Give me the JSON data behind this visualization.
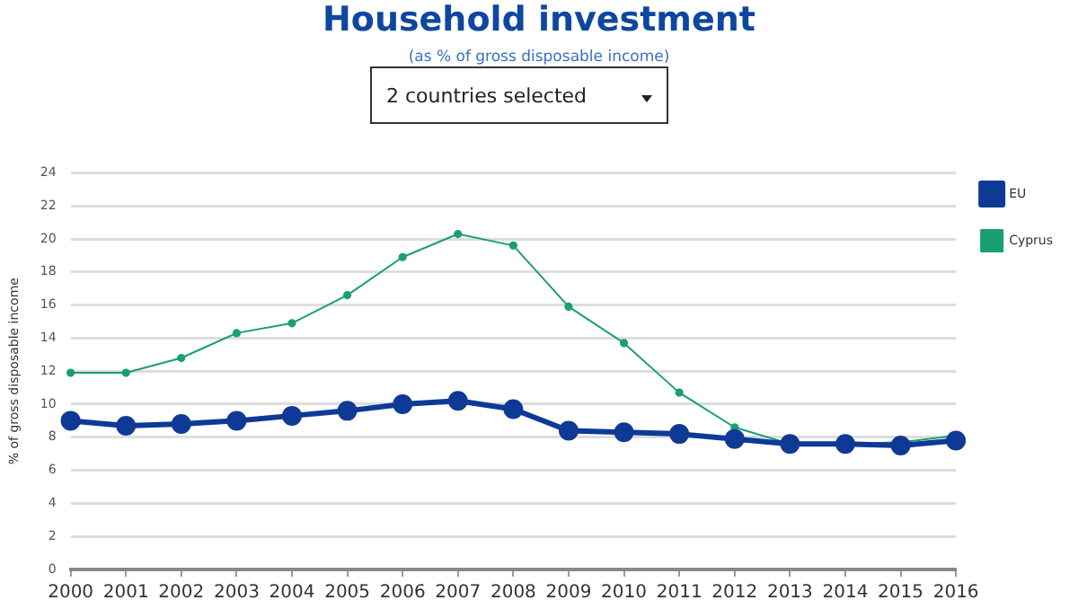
{
  "chart_data": {
    "type": "line",
    "title": "Household investment",
    "subtitle": "(as % of gross disposable income)",
    "annotations": [
      "2 countries selected"
    ],
    "ylabel": "% of gross disposable income",
    "categories": [
      "2000",
      "2001",
      "2002",
      "2003",
      "2004",
      "2005",
      "2006",
      "2007",
      "2008",
      "2009",
      "2010",
      "2011",
      "2012",
      "2013",
      "2014",
      "2015",
      "2016"
    ],
    "series": [
      {
        "name": "EU",
        "color": "#0e3a96",
        "values": [
          9.0,
          8.7,
          8.8,
          9.0,
          9.3,
          9.6,
          10.0,
          10.2,
          9.7,
          8.4,
          8.3,
          8.2,
          7.9,
          7.6,
          7.6,
          7.5,
          7.8
        ]
      },
      {
        "name": "Cyprus",
        "color": "#1a9e74",
        "values": [
          11.9,
          11.9,
          12.8,
          14.3,
          14.9,
          16.6,
          18.9,
          20.3,
          19.6,
          15.9,
          13.7,
          10.7,
          8.6,
          7.6,
          7.6,
          7.7,
          8.1
        ]
      }
    ],
    "ylim": [
      0,
      24
    ],
    "yticks": [
      0,
      2,
      4,
      6,
      8,
      10,
      12,
      14,
      16,
      18,
      20,
      22,
      24
    ],
    "grid": "y",
    "legend": "top right",
    "marker": "circle",
    "line_style": "solid"
  }
}
